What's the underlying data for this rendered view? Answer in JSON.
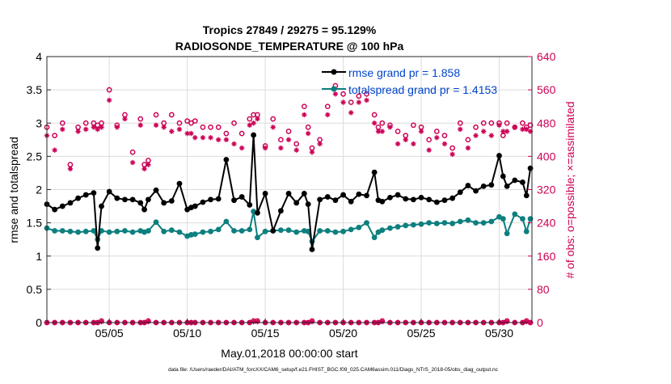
{
  "chart_data": {
    "type": "line",
    "title": "Tropics 27849 / 29275 = 95.129%",
    "subtitle": "RADIOSONDE_TEMPERATURE @ 100 hPa",
    "xlabel": "May.01,2018 00:00:00 start",
    "ylabel_left": "rmse and totalspread",
    "ylabel_right": "# of obs: o=possible; ×=assimilated",
    "footer": "data file: /Users/raeder/DAI/ATM_forcXX/CAM6_setup/f.e21.FHIST_BGC.f09_025.CAM6assim.011/Diags_NTrS_2018-05/obs_diag_output.nc",
    "xlim": [
      1,
      32.1
    ],
    "ylim_left": [
      0,
      4
    ],
    "ylim_right": [
      0,
      640
    ],
    "x_ticks": [
      {
        "x": 5,
        "label": "05/05"
      },
      {
        "x": 10,
        "label": "05/10"
      },
      {
        "x": 15,
        "label": "05/15"
      },
      {
        "x": 20,
        "label": "05/20"
      },
      {
        "x": 25,
        "label": "05/25"
      },
      {
        "x": 30,
        "label": "05/30"
      }
    ],
    "y_ticks_left": [
      "0",
      "0.5",
      "1",
      "1.5",
      "2",
      "2.5",
      "3",
      "3.5",
      "4"
    ],
    "y_ticks_right": [
      "0",
      "80",
      "160",
      "240",
      "320",
      "400",
      "480",
      "560",
      "640"
    ],
    "x": [
      1.0,
      1.5,
      2.0,
      2.5,
      3.0,
      3.5,
      4.0,
      4.25,
      4.5,
      5.0,
      5.5,
      6.0,
      6.5,
      7.0,
      7.25,
      7.5,
      8.0,
      8.5,
      9.0,
      9.5,
      10.0,
      10.25,
      10.5,
      11.0,
      11.5,
      12.0,
      12.5,
      13.0,
      13.5,
      14.0,
      14.25,
      14.5,
      15.0,
      15.5,
      16.0,
      16.5,
      17.0,
      17.5,
      17.75,
      18.0,
      18.5,
      19.0,
      19.5,
      20.0,
      20.5,
      21.0,
      21.5,
      22.0,
      22.25,
      22.5,
      23.0,
      23.5,
      24.0,
      24.5,
      25.0,
      25.5,
      26.0,
      26.5,
      27.0,
      27.5,
      28.0,
      28.5,
      29.0,
      29.5,
      30.0,
      30.25,
      30.5,
      31.0,
      31.5,
      31.75,
      32.0
    ],
    "series": [
      {
        "name": "rmse grand pr = 1.858",
        "color": "#000000",
        "values": [
          1.78,
          1.7,
          1.75,
          1.8,
          1.87,
          1.92,
          1.95,
          1.12,
          1.75,
          1.97,
          1.87,
          1.85,
          1.85,
          1.8,
          1.7,
          1.85,
          1.99,
          1.8,
          1.83,
          2.09,
          1.7,
          1.73,
          1.75,
          1.81,
          1.85,
          1.86,
          2.45,
          1.84,
          1.89,
          1.77,
          2.82,
          1.65,
          1.94,
          1.38,
          1.68,
          1.94,
          1.8,
          1.94,
          1.78,
          1.1,
          1.85,
          1.89,
          1.84,
          1.92,
          1.82,
          1.93,
          1.91,
          2.26,
          1.84,
          1.82,
          1.88,
          1.92,
          1.86,
          1.85,
          1.88,
          1.85,
          1.81,
          1.84,
          1.87,
          1.96,
          2.06,
          1.98,
          2.05,
          2.07,
          2.51,
          2.2,
          2.05,
          2.14,
          2.11,
          1.91,
          2.32
        ]
      },
      {
        "name": "totalspread grand pr = 1.4153",
        "color": "#0d7f7f",
        "values": [
          1.42,
          1.38,
          1.38,
          1.37,
          1.36,
          1.37,
          1.38,
          1.25,
          1.38,
          1.36,
          1.37,
          1.38,
          1.36,
          1.38,
          1.36,
          1.38,
          1.51,
          1.37,
          1.39,
          1.36,
          1.3,
          1.32,
          1.33,
          1.36,
          1.37,
          1.4,
          1.52,
          1.38,
          1.38,
          1.4,
          1.67,
          1.28,
          1.37,
          1.38,
          1.39,
          1.39,
          1.36,
          1.38,
          1.37,
          1.22,
          1.38,
          1.38,
          1.36,
          1.37,
          1.4,
          1.43,
          1.5,
          1.28,
          1.36,
          1.39,
          1.42,
          1.44,
          1.46,
          1.47,
          1.48,
          1.5,
          1.49,
          1.5,
          1.49,
          1.52,
          1.54,
          1.5,
          1.5,
          1.52,
          1.59,
          1.56,
          1.34,
          1.63,
          1.56,
          1.37,
          1.56
        ]
      },
      {
        "name": "possible",
        "color": "#cc0055",
        "marker": "o",
        "values": [
          470,
          450,
          480,
          380,
          470,
          480,
          480,
          475,
          480,
          560,
          475,
          500,
          410,
          490,
          380,
          390,
          500,
          480,
          500,
          480,
          485,
          480,
          485,
          470,
          470,
          470,
          455,
          480,
          455,
          490,
          500,
          500,
          425,
          490,
          440,
          460,
          430,
          520,
          470,
          420,
          440,
          520,
          570,
          550,
          530,
          545,
          550,
          500,
          470,
          480,
          475,
          460,
          450,
          475,
          470,
          440,
          460,
          450,
          420,
          480,
          440,
          470,
          480,
          480,
          480,
          450,
          480,
          470,
          480,
          470,
          475
        ]
      },
      {
        "name": "assimilated",
        "color": "#cc0055",
        "marker": "x",
        "values": [
          450,
          415,
          465,
          370,
          460,
          465,
          470,
          465,
          470,
          535,
          470,
          490,
          385,
          475,
          370,
          380,
          475,
          470,
          460,
          465,
          455,
          455,
          445,
          445,
          445,
          440,
          440,
          430,
          420,
          475,
          480,
          490,
          420,
          470,
          420,
          440,
          415,
          500,
          455,
          410,
          430,
          500,
          550,
          530,
          505,
          530,
          535,
          480,
          460,
          460,
          470,
          430,
          440,
          430,
          460,
          415,
          445,
          430,
          405,
          465,
          420,
          450,
          460,
          450,
          475,
          460,
          460,
          470,
          465,
          465,
          460
        ]
      },
      {
        "name": "possible_bottom",
        "color": "#cc0055",
        "marker": "o",
        "values": [
          0,
          0,
          0,
          0,
          0,
          0,
          0,
          0,
          4,
          0,
          0,
          0,
          0,
          0,
          0,
          4,
          0,
          0,
          0,
          0,
          0,
          0,
          0,
          0,
          0,
          0,
          0,
          0,
          0,
          0,
          4,
          4,
          0,
          0,
          0,
          0,
          0,
          0,
          0,
          4,
          0,
          0,
          0,
          0,
          0,
          0,
          0,
          0,
          0,
          4,
          0,
          0,
          0,
          0,
          0,
          0,
          0,
          0,
          0,
          0,
          0,
          0,
          0,
          0,
          0,
          0,
          4,
          0,
          0,
          4,
          0
        ]
      },
      {
        "name": "assimilated_bottom",
        "color": "#cc0055",
        "marker": "x",
        "values": [
          0,
          0,
          0,
          0,
          0,
          0,
          0,
          0,
          2,
          0,
          0,
          0,
          0,
          0,
          0,
          2,
          0,
          0,
          0,
          0,
          0,
          0,
          0,
          0,
          0,
          0,
          0,
          0,
          0,
          0,
          2,
          2,
          0,
          0,
          0,
          0,
          0,
          0,
          0,
          2,
          0,
          0,
          0,
          0,
          0,
          0,
          0,
          0,
          0,
          2,
          0,
          0,
          0,
          0,
          0,
          0,
          0,
          0,
          0,
          0,
          0,
          0,
          0,
          0,
          0,
          0,
          2,
          0,
          0,
          2,
          0
        ]
      }
    ],
    "legend": {
      "placement": "top-right",
      "entries": [
        "rmse grand pr = 1.858",
        "totalspread grand pr = 1.4153"
      ]
    },
    "colors": {
      "left_axis": "#000000",
      "right_axis": "#cc0055",
      "legend_text": "#0044cc",
      "rmse": "#000000",
      "spread": "#0d7f7f"
    }
  }
}
